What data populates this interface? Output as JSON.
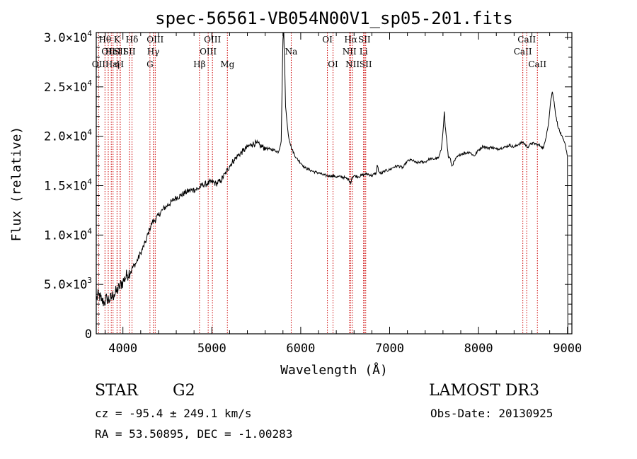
{
  "chart_data": {
    "type": "line",
    "title": "spec-56561-VB054N00V1_sp05-201.fits",
    "xlabel": "Wavelength (Å)",
    "ylabel": "Flux (relative)",
    "xlim": [
      3700,
      9050
    ],
    "ylim": [
      0,
      30500
    ],
    "x_ticks": [
      {
        "value": 4000,
        "label": "4000"
      },
      {
        "value": 5000,
        "label": "5000"
      },
      {
        "value": 6000,
        "label": "6000"
      },
      {
        "value": 7000,
        "label": "7000"
      },
      {
        "value": 8000,
        "label": "8000"
      },
      {
        "value": 9000,
        "label": "9000"
      }
    ],
    "y_ticks": [
      {
        "value": 0,
        "mantissa": "0",
        "exp": ""
      },
      {
        "value": 5000,
        "mantissa": "5.0×10",
        "exp": "3"
      },
      {
        "value": 10000,
        "mantissa": "1.0×10",
        "exp": "4"
      },
      {
        "value": 15000,
        "mantissa": "1.5×10",
        "exp": "4"
      },
      {
        "value": 20000,
        "mantissa": "2.0×10",
        "exp": "4"
      },
      {
        "value": 25000,
        "mantissa": "2.5×10",
        "exp": "4"
      },
      {
        "value": 30000,
        "mantissa": "3.0×10",
        "exp": "4"
      }
    ],
    "series": [
      {
        "name": "spectrum",
        "color": "#000000",
        "x": [
          3700,
          3730,
          3760,
          3790,
          3820,
          3850,
          3880,
          3900,
          3930,
          3960,
          4000,
          4050,
          4100,
          4150,
          4200,
          4250,
          4300,
          4330,
          4360,
          4400,
          4450,
          4500,
          4550,
          4600,
          4650,
          4700,
          4750,
          4800,
          4850,
          4900,
          4950,
          5000,
          5050,
          5100,
          5150,
          5200,
          5250,
          5300,
          5350,
          5400,
          5450,
          5500,
          5550,
          5600,
          5650,
          5700,
          5750,
          5780,
          5800,
          5810,
          5815,
          5820,
          5830,
          5840,
          5850,
          5860,
          5870,
          5880,
          5900,
          5950,
          6000,
          6050,
          6100,
          6150,
          6200,
          6250,
          6300,
          6350,
          6400,
          6450,
          6500,
          6540,
          6555,
          6563,
          6575,
          6600,
          6650,
          6700,
          6750,
          6800,
          6850,
          6860,
          6880,
          6900,
          6950,
          7000,
          7050,
          7100,
          7150,
          7200,
          7250,
          7300,
          7350,
          7400,
          7450,
          7500,
          7550,
          7580,
          7600,
          7615,
          7625,
          7640,
          7660,
          7680,
          7700,
          7750,
          7800,
          7850,
          7900,
          7950,
          8000,
          8050,
          8100,
          8150,
          8200,
          8250,
          8300,
          8350,
          8400,
          8450,
          8500,
          8550,
          8600,
          8650,
          8700,
          8730,
          8750,
          8770,
          8790,
          8810,
          8830,
          8850,
          8870,
          8900,
          8930,
          8960,
          8980,
          9000,
          9005
        ],
        "y": [
          3500,
          4000,
          3300,
          3200,
          3600,
          3400,
          3800,
          4000,
          4300,
          4700,
          5300,
          6000,
          6600,
          7200,
          8200,
          9200,
          10600,
          11300,
          11500,
          12000,
          12600,
          13000,
          13400,
          13800,
          14000,
          14300,
          14500,
          14600,
          14700,
          15100,
          15200,
          15400,
          15200,
          15500,
          16200,
          17000,
          17600,
          18100,
          18500,
          18900,
          19200,
          19300,
          19000,
          18800,
          18700,
          18600,
          18400,
          19500,
          29800,
          31000,
          28000,
          27000,
          23000,
          22000,
          21000,
          20200,
          19600,
          19300,
          18700,
          17800,
          17300,
          16800,
          16600,
          16400,
          16300,
          16100,
          16000,
          16000,
          15900,
          15900,
          15800,
          15600,
          15400,
          15200,
          15800,
          16000,
          15900,
          16100,
          16200,
          16000,
          16300,
          17100,
          16400,
          16200,
          16500,
          16600,
          16900,
          17000,
          16800,
          17500,
          17600,
          17300,
          17400,
          17400,
          17700,
          17700,
          17800,
          18600,
          20500,
          22500,
          21000,
          19800,
          17900,
          17800,
          17000,
          17800,
          18200,
          18300,
          18400,
          18000,
          18600,
          19000,
          18800,
          18900,
          18700,
          18800,
          18900,
          19100,
          18900,
          19200,
          19400,
          18900,
          19300,
          19200,
          19000,
          18800,
          19500,
          20500,
          21500,
          23500,
          24500,
          23500,
          22000,
          20800,
          20100,
          19500,
          19000,
          18000,
          0
        ]
      }
    ],
    "line_color": "#cc0000",
    "lines": [
      {
        "wl": 3727,
        "label": "OII",
        "row": 2
      },
      {
        "wl": 3798,
        "label": "Hθ",
        "row": 0
      },
      {
        "wl": 3835,
        "label": "OII",
        "row": 1
      },
      {
        "wl": 3869,
        "label": "Hε",
        "row": 2
      },
      {
        "wl": 3889,
        "label": "HeI",
        "row": 1
      },
      {
        "wl": 3934,
        "label": "K",
        "row": 0
      },
      {
        "wl": 3934,
        "label": "η",
        "row": 2
      },
      {
        "wl": 3968,
        "label": "SII",
        "row": 1
      },
      {
        "wl": 3970,
        "label": "H",
        "row": 2
      },
      {
        "wl": 4072,
        "label": "SII",
        "row": 1
      },
      {
        "wl": 4102,
        "label": "Hδ",
        "row": 0
      },
      {
        "wl": 4304,
        "label": "G",
        "row": 2
      },
      {
        "wl": 4341,
        "label": "Hγ",
        "row": 1
      },
      {
        "wl": 4363,
        "label": "OIII",
        "row": 0
      },
      {
        "wl": 4861,
        "label": "Hβ",
        "row": 2
      },
      {
        "wl": 4959,
        "label": "OIII",
        "row": 1
      },
      {
        "wl": 5007,
        "label": "OIII",
        "row": 0
      },
      {
        "wl": 5175,
        "label": "Mg",
        "row": 2
      },
      {
        "wl": 5893,
        "label": "Na",
        "row": 1
      },
      {
        "wl": 6300,
        "label": "OI",
        "row": 0
      },
      {
        "wl": 6363,
        "label": "OI",
        "row": 2
      },
      {
        "wl": 6548,
        "label": "NII",
        "row": 1
      },
      {
        "wl": 6563,
        "label": "Hα",
        "row": 0
      },
      {
        "wl": 6583,
        "label": "NII",
        "row": 2
      },
      {
        "wl": 6707,
        "label": "Li",
        "row": 1
      },
      {
        "wl": 6716,
        "label": "SII",
        "row": 0
      },
      {
        "wl": 6731,
        "label": "SII",
        "row": 2
      },
      {
        "wl": 8498,
        "label": "CaII",
        "row": 1
      },
      {
        "wl": 8542,
        "label": "CaII",
        "row": 0
      },
      {
        "wl": 8662,
        "label": "CaII",
        "row": 2
      }
    ]
  },
  "info": {
    "object_class": "STAR",
    "subclass": "G2",
    "survey": "LAMOST DR3",
    "cz": "cz = -95.4 ± 249.1 km/s",
    "coords": "RA =  53.50895, DEC =  -1.00283",
    "obs_date": "Obs-Date: 20130925"
  }
}
